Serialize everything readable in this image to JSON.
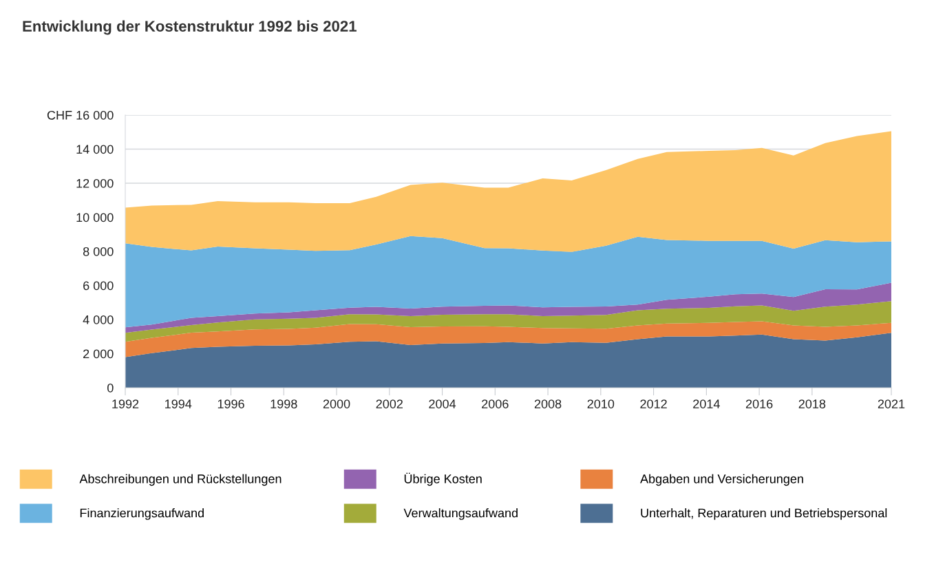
{
  "chart_data": {
    "type": "area",
    "stacked": true,
    "title": "Entwicklung der Kostenstruktur 1992 bis 2021",
    "x": [
      1992.0,
      1993.0,
      1994.5,
      1995.5,
      1996.9,
      1998.2,
      1999.2,
      2000.5,
      2001.5,
      2002.8,
      2004.0,
      2005.6,
      2006.5,
      2007.8,
      2008.9,
      2010.2,
      2011.4,
      2012.5,
      2014.1,
      2015.1,
      2016.1,
      2017.3,
      2018.5,
      2019.7,
      2021.0
    ],
    "series": [
      {
        "name": "Unterhalt, Reparaturen und Betriebspersonal",
        "color": "#4d6f93",
        "values": [
          1800,
          2030,
          2330,
          2400,
          2460,
          2480,
          2550,
          2700,
          2730,
          2510,
          2600,
          2630,
          2680,
          2600,
          2680,
          2640,
          2850,
          3010,
          3010,
          3060,
          3120,
          2850,
          2770,
          2960,
          3220
        ]
      },
      {
        "name": "Abgaben und Versicherungen",
        "color": "#e9823f",
        "values": [
          900,
          900,
          900,
          900,
          960,
          970,
          980,
          1040,
          1000,
          1050,
          1000,
          980,
          900,
          900,
          800,
          820,
          810,
          760,
          800,
          800,
          780,
          810,
          810,
          700,
          590
        ]
      },
      {
        "name": "Verwaltungsaufwand",
        "color": "#a3ab3a",
        "values": [
          520,
          480,
          450,
          530,
          590,
          600,
          570,
          570,
          570,
          640,
          680,
          700,
          730,
          700,
          750,
          810,
          890,
          870,
          880,
          920,
          930,
          860,
          1180,
          1220,
          1270
        ]
      },
      {
        "name": "Übrige Kosten",
        "color": "#9364b0",
        "values": [
          330,
          300,
          420,
          370,
          340,
          370,
          450,
          390,
          450,
          450,
          480,
          500,
          520,
          520,
          520,
          500,
          330,
          520,
          650,
          700,
          700,
          800,
          1020,
          890,
          1080
        ]
      },
      {
        "name": "Finanzierungsaufwand",
        "color": "#6bb3e0",
        "values": [
          4920,
          4550,
          3960,
          4080,
          3830,
          3680,
          3480,
          3370,
          3650,
          4250,
          4020,
          3380,
          3350,
          3330,
          3220,
          3560,
          3980,
          3510,
          3280,
          3140,
          3090,
          2840,
          2880,
          2770,
          2430
        ]
      },
      {
        "name": "Abschreibungen und Rückstellungen",
        "color": "#fdc566",
        "values": [
          2100,
          2430,
          2670,
          2670,
          2700,
          2780,
          2800,
          2760,
          2800,
          3000,
          3250,
          3550,
          3560,
          4230,
          4190,
          4440,
          4560,
          5160,
          5280,
          5320,
          5450,
          5470,
          5690,
          6230,
          6460
        ]
      }
    ],
    "xlim": [
      1992,
      2021
    ],
    "xticks": [
      1992,
      1994,
      1996,
      1998,
      2000,
      2002,
      2004,
      2006,
      2008,
      2010,
      2012,
      2014,
      2016,
      2018,
      2021
    ],
    "ylim": [
      0,
      16000
    ],
    "yticks": [
      0,
      {
        "value": 2000,
        "label": "2 000"
      },
      {
        "value": 4000,
        "label": "4 000"
      },
      {
        "value": 6000,
        "label": "6 000"
      },
      {
        "value": 8000,
        "label": "8 000"
      },
      {
        "value": 10000,
        "label": "10 000"
      },
      {
        "value": 12000,
        "label": "12 000"
      },
      {
        "value": 14000,
        "label": "14 000"
      },
      {
        "value": 16000,
        "label": "CHF 16 000"
      }
    ],
    "grid": "y",
    "legend": "bottom"
  }
}
